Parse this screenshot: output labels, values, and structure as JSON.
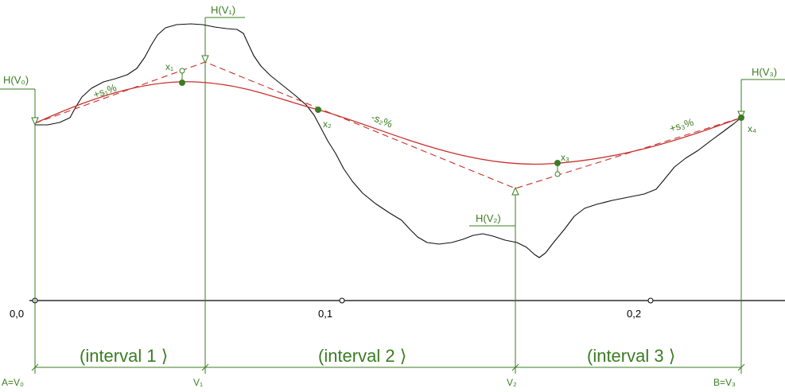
{
  "labels": {
    "h_v0": "H(V₀)",
    "h_v1": "H(V₁)",
    "h_v2": "H(V₂)",
    "h_v3": "H(V₃)"
  },
  "points": {
    "x1": "x₁",
    "x2": "x₂",
    "x3": "x₃",
    "x4": "x₄"
  },
  "slopes": {
    "s1": "+s₁%",
    "s2": "-s₂%",
    "s3": "+s₃%"
  },
  "axis": {
    "ticks": [
      "0,0",
      "0,1",
      "0,2"
    ]
  },
  "intervals": [
    "(interval 1 ⟩",
    "(interval 2 ⟩",
    "(interval 3 ⟩"
  ],
  "stations": [
    "A=V₀",
    "V₁",
    "V₂",
    "B=V₃"
  ],
  "colors": {
    "alignment": "#3a7d22",
    "design_curve": "#c8302c",
    "terrain": "#111111",
    "axis": "#000000"
  }
}
